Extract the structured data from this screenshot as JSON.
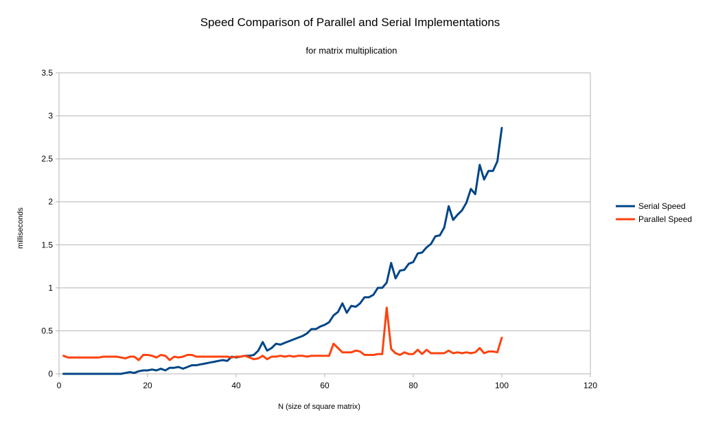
{
  "chart_data": {
    "type": "line",
    "title": "Speed Comparison of Parallel and Serial Implementations",
    "subtitle": "for matrix multiplication",
    "xlabel": "N (size of square matrix)",
    "ylabel": "milliseconds",
    "xlim": [
      0,
      120
    ],
    "ylim": [
      0,
      3.5
    ],
    "xticks": [
      "0",
      "20",
      "40",
      "60",
      "80",
      "100",
      "120"
    ],
    "yticks": [
      "0",
      "0.5",
      "1",
      "1.5",
      "2",
      "2.5",
      "3",
      "3.5"
    ],
    "grid": "horizontal",
    "legend_position": "right",
    "x": [
      1,
      2,
      3,
      4,
      5,
      6,
      7,
      8,
      9,
      10,
      11,
      12,
      13,
      14,
      15,
      16,
      17,
      18,
      19,
      20,
      21,
      22,
      23,
      24,
      25,
      26,
      27,
      28,
      29,
      30,
      31,
      32,
      33,
      34,
      35,
      36,
      37,
      38,
      39,
      40,
      41,
      42,
      43,
      44,
      45,
      46,
      47,
      48,
      49,
      50,
      51,
      52,
      53,
      54,
      55,
      56,
      57,
      58,
      59,
      60,
      61,
      62,
      63,
      64,
      65,
      66,
      67,
      68,
      69,
      70,
      71,
      72,
      73,
      74,
      75,
      76,
      77,
      78,
      79,
      80,
      81,
      82,
      83,
      84,
      85,
      86,
      87,
      88,
      89,
      90,
      91,
      92,
      93,
      94,
      95,
      96,
      97,
      98,
      99,
      100
    ],
    "series": [
      {
        "name": "Serial Speed",
        "color": "#004586",
        "values": [
          0,
          0,
          0,
          0,
          0,
          0,
          0,
          0,
          0,
          0,
          0,
          0,
          0,
          0,
          0.01,
          0.02,
          0.01,
          0.03,
          0.04,
          0.04,
          0.05,
          0.04,
          0.06,
          0.04,
          0.07,
          0.07,
          0.08,
          0.06,
          0.08,
          0.1,
          0.1,
          0.11,
          0.12,
          0.13,
          0.14,
          0.15,
          0.16,
          0.15,
          0.2,
          0.19,
          0.2,
          0.21,
          0.21,
          0.22,
          0.27,
          0.37,
          0.27,
          0.3,
          0.35,
          0.34,
          0.36,
          0.38,
          0.4,
          0.42,
          0.44,
          0.47,
          0.52,
          0.52,
          0.55,
          0.57,
          0.6,
          0.68,
          0.72,
          0.82,
          0.71,
          0.79,
          0.78,
          0.82,
          0.89,
          0.89,
          0.92,
          1.0,
          1.0,
          1.06,
          1.29,
          1.11,
          1.2,
          1.21,
          1.28,
          1.3,
          1.4,
          1.41,
          1.47,
          1.51,
          1.6,
          1.61,
          1.7,
          1.95,
          1.79,
          1.85,
          1.9,
          1.99,
          2.15,
          2.09,
          2.43,
          2.26,
          2.36,
          2.36,
          2.47,
          2.86
        ]
      },
      {
        "name": "Parallel Speed",
        "color": "#ff420e",
        "values": [
          0.21,
          0.19,
          0.19,
          0.19,
          0.19,
          0.19,
          0.19,
          0.19,
          0.19,
          0.2,
          0.2,
          0.2,
          0.2,
          0.19,
          0.18,
          0.2,
          0.2,
          0.16,
          0.22,
          0.22,
          0.21,
          0.19,
          0.22,
          0.21,
          0.16,
          0.2,
          0.19,
          0.2,
          0.22,
          0.22,
          0.2,
          0.2,
          0.2,
          0.2,
          0.2,
          0.2,
          0.2,
          0.2,
          0.19,
          0.2,
          0.2,
          0.21,
          0.19,
          0.17,
          0.18,
          0.21,
          0.17,
          0.2,
          0.2,
          0.21,
          0.2,
          0.21,
          0.2,
          0.21,
          0.21,
          0.2,
          0.21,
          0.21,
          0.21,
          0.21,
          0.21,
          0.35,
          0.3,
          0.25,
          0.25,
          0.25,
          0.27,
          0.26,
          0.22,
          0.22,
          0.22,
          0.23,
          0.23,
          0.77,
          0.29,
          0.24,
          0.22,
          0.25,
          0.23,
          0.23,
          0.28,
          0.23,
          0.28,
          0.24,
          0.24,
          0.24,
          0.24,
          0.27,
          0.24,
          0.25,
          0.24,
          0.25,
          0.24,
          0.25,
          0.3,
          0.24,
          0.26,
          0.26,
          0.25,
          0.42
        ]
      }
    ]
  }
}
